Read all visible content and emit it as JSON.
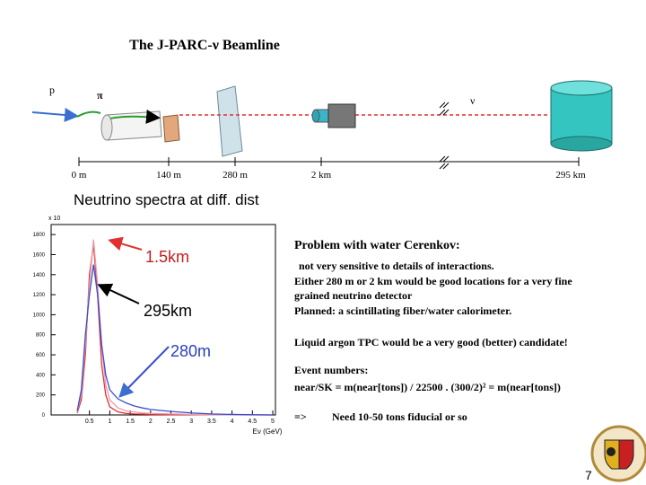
{
  "header": {
    "title": "The J-PARC-ν  Beamline"
  },
  "beamline": {
    "labels": [
      "p",
      "π",
      "ν"
    ],
    "distances": [
      "0 m",
      "140 m",
      "280 m",
      "2 km",
      "295 km"
    ]
  },
  "plot": {
    "type": "line",
    "title": "Neutrino spectra at diff. dist",
    "multiplier": "x 10",
    "xlabel": "Eν (GeV)",
    "xlim": [
      0,
      5
    ],
    "ylim": [
      0,
      1900
    ],
    "xticks": [
      0.5,
      1,
      1.5,
      2,
      2.5,
      3,
      3.5,
      4,
      4.5,
      5
    ],
    "yticks": [
      0,
      200,
      400,
      600,
      800,
      1000,
      1200,
      1400,
      1600,
      1800
    ],
    "x": [
      0.2,
      0.3,
      0.4,
      0.5,
      0.6,
      0.7,
      0.8,
      0.9,
      1.0,
      1.2,
      1.4,
      1.6,
      1.8,
      2.0,
      2.5,
      3,
      3.5,
      4,
      4.5,
      5
    ],
    "series": [
      {
        "color": "#e03030",
        "values": [
          20,
          150,
          600,
          1400,
          1700,
          1200,
          500,
          200,
          80,
          30,
          15,
          10,
          8,
          5,
          3,
          2,
          1,
          1,
          0,
          0
        ]
      },
      {
        "color": "#e89aa8",
        "values": [
          30,
          200,
          700,
          1300,
          1750,
          1300,
          700,
          300,
          150,
          70,
          40,
          30,
          20,
          15,
          10,
          5,
          3,
          2,
          1,
          0
        ]
      },
      {
        "color": "#3a4fd0",
        "values": [
          40,
          250,
          800,
          1200,
          1500,
          1200,
          700,
          400,
          250,
          160,
          120,
          90,
          70,
          55,
          35,
          20,
          10,
          5,
          2,
          0
        ]
      }
    ],
    "annotations": [
      "1.5km",
      "295km",
      "280m"
    ]
  },
  "notes": {
    "heading": "Problem with water Cerenkov:",
    "lines": [
      "not very sensitive to details of interactions.",
      "Either 280 m or 2 km would be good locations for a very fine",
      "grained neutrino detector",
      "Planned: a scintillating fiber/water calorimeter.",
      "Liquid argon TPC would be a very good (better) candidate!",
      "Event numbers:",
      "near/SK = m(near[tons]) / 22500 . (300/2)² = m(near[tons])",
      "=>",
      "Need 10-50 tons fiducial or so"
    ]
  },
  "page_number": "7"
}
